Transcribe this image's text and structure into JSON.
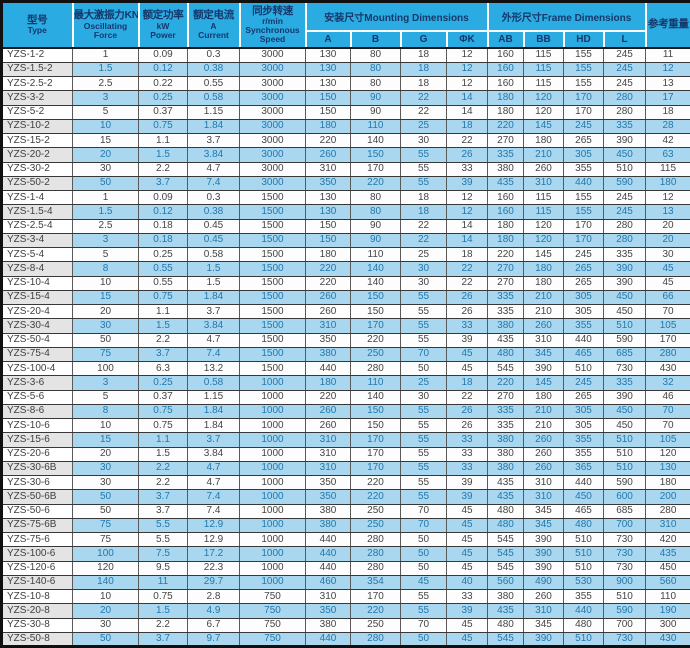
{
  "colors": {
    "header_bg": "#2aabe2",
    "header_text": "#16386b",
    "row_alt_bg": "#a9d7ef",
    "model_cell_alt_bg": "#e4e4e4",
    "grid_line": "#383838"
  },
  "table": {
    "header": {
      "type": {
        "zh": "型号",
        "en": "Type"
      },
      "force": {
        "zh": "最大激振力KN",
        "en": "Oscillating Force"
      },
      "power": {
        "zh": "额定功率",
        "unit": "kW",
        "en": "Power"
      },
      "current": {
        "zh": "额定电流",
        "unit": "A",
        "en": "Current"
      },
      "speed": {
        "zh": "同步转速",
        "unit": "r/min",
        "en": "Synchronous Speed"
      },
      "mounting": "安装尺寸Mounting Dimensions",
      "frame": "外形尺寸Frame Dimensions",
      "weight": "参考重量",
      "sub_cols": [
        "A",
        "B",
        "G",
        "ΦK",
        "AB",
        "BB",
        "HD",
        "L"
      ]
    },
    "rows": [
      [
        "YZS-1-2",
        "1",
        "0.09",
        "0.3",
        "3000",
        "130",
        "80",
        "18",
        "12",
        "160",
        "115",
        "155",
        "245",
        "11"
      ],
      [
        "YZS-1.5-2",
        "1.5",
        "0.12",
        "0.38",
        "3000",
        "130",
        "80",
        "18",
        "12",
        "160",
        "115",
        "155",
        "245",
        "12"
      ],
      [
        "YZS-2.5-2",
        "2.5",
        "0.22",
        "0.55",
        "3000",
        "130",
        "80",
        "18",
        "12",
        "160",
        "115",
        "155",
        "245",
        "13"
      ],
      [
        "YZS-3-2",
        "3",
        "0.25",
        "0.58",
        "3000",
        "150",
        "90",
        "22",
        "14",
        "180",
        "120",
        "170",
        "280",
        "17"
      ],
      [
        "YZS-5-2",
        "5",
        "0.37",
        "1.15",
        "3000",
        "150",
        "90",
        "22",
        "14",
        "180",
        "120",
        "170",
        "280",
        "18"
      ],
      [
        "YZS-10-2",
        "10",
        "0.75",
        "1.84",
        "3000",
        "180",
        "110",
        "25",
        "18",
        "220",
        "145",
        "245",
        "335",
        "28"
      ],
      [
        "YZS-15-2",
        "15",
        "1.1",
        "3.7",
        "3000",
        "220",
        "140",
        "30",
        "22",
        "270",
        "180",
        "265",
        "390",
        "42"
      ],
      [
        "YZS-20-2",
        "20",
        "1.5",
        "3.84",
        "3000",
        "260",
        "150",
        "55",
        "26",
        "335",
        "210",
        "305",
        "450",
        "63"
      ],
      [
        "YZS-30-2",
        "30",
        "2.2",
        "4.7",
        "3000",
        "310",
        "170",
        "55",
        "33",
        "380",
        "260",
        "355",
        "510",
        "115"
      ],
      [
        "YZS-50-2",
        "50",
        "3.7",
        "7.4",
        "3000",
        "350",
        "220",
        "55",
        "39",
        "435",
        "310",
        "440",
        "590",
        "180"
      ],
      [
        "YZS-1-4",
        "1",
        "0.09",
        "0.3",
        "1500",
        "130",
        "80",
        "18",
        "12",
        "160",
        "115",
        "155",
        "245",
        "12"
      ],
      [
        "YZS-1.5-4",
        "1.5",
        "0.12",
        "0.38",
        "1500",
        "130",
        "80",
        "18",
        "12",
        "160",
        "115",
        "155",
        "245",
        "13"
      ],
      [
        "YZS-2.5-4",
        "2.5",
        "0.18",
        "0.45",
        "1500",
        "150",
        "90",
        "22",
        "14",
        "180",
        "120",
        "170",
        "280",
        "20"
      ],
      [
        "YZS-3-4",
        "3",
        "0.18",
        "0.45",
        "1500",
        "150",
        "90",
        "22",
        "14",
        "180",
        "120",
        "170",
        "280",
        "20"
      ],
      [
        "YZS-5-4",
        "5",
        "0.25",
        "0.58",
        "1500",
        "180",
        "110",
        "25",
        "18",
        "220",
        "145",
        "245",
        "335",
        "30"
      ],
      [
        "YZS-8-4",
        "8",
        "0.55",
        "1.5",
        "1500",
        "220",
        "140",
        "30",
        "22",
        "270",
        "180",
        "265",
        "390",
        "45"
      ],
      [
        "YZS-10-4",
        "10",
        "0.55",
        "1.5",
        "1500",
        "220",
        "140",
        "30",
        "22",
        "270",
        "180",
        "265",
        "390",
        "45"
      ],
      [
        "YZS-15-4",
        "15",
        "0.75",
        "1.84",
        "1500",
        "260",
        "150",
        "55",
        "26",
        "335",
        "210",
        "305",
        "450",
        "66"
      ],
      [
        "YZS-20-4",
        "20",
        "1.1",
        "3.7",
        "1500",
        "260",
        "150",
        "55",
        "26",
        "335",
        "210",
        "305",
        "450",
        "70"
      ],
      [
        "YZS-30-4",
        "30",
        "1.5",
        "3.84",
        "1500",
        "310",
        "170",
        "55",
        "33",
        "380",
        "260",
        "355",
        "510",
        "105"
      ],
      [
        "YZS-50-4",
        "50",
        "2.2",
        "4.7",
        "1500",
        "350",
        "220",
        "55",
        "39",
        "435",
        "310",
        "440",
        "590",
        "170"
      ],
      [
        "YZS-75-4",
        "75",
        "3.7",
        "7.4",
        "1500",
        "380",
        "250",
        "70",
        "45",
        "480",
        "345",
        "465",
        "685",
        "280"
      ],
      [
        "YZS-100-4",
        "100",
        "6.3",
        "13.2",
        "1500",
        "440",
        "280",
        "50",
        "45",
        "545",
        "390",
        "510",
        "730",
        "430"
      ],
      [
        "YZS-3-6",
        "3",
        "0.25",
        "0.58",
        "1000",
        "180",
        "110",
        "25",
        "18",
        "220",
        "145",
        "245",
        "335",
        "32"
      ],
      [
        "YZS-5-6",
        "5",
        "0.37",
        "1.15",
        "1000",
        "220",
        "140",
        "30",
        "22",
        "270",
        "180",
        "265",
        "390",
        "46"
      ],
      [
        "YZS-8-6",
        "8",
        "0.75",
        "1.84",
        "1000",
        "260",
        "150",
        "55",
        "26",
        "335",
        "210",
        "305",
        "450",
        "70"
      ],
      [
        "YZS-10-6",
        "10",
        "0.75",
        "1.84",
        "1000",
        "260",
        "150",
        "55",
        "26",
        "335",
        "210",
        "305",
        "450",
        "70"
      ],
      [
        "YZS-15-6",
        "15",
        "1.1",
        "3.7",
        "1000",
        "310",
        "170",
        "55",
        "33",
        "380",
        "260",
        "355",
        "510",
        "105"
      ],
      [
        "YZS-20-6",
        "20",
        "1.5",
        "3.84",
        "1000",
        "310",
        "170",
        "55",
        "33",
        "380",
        "260",
        "355",
        "510",
        "120"
      ],
      [
        "YZS-30-6B",
        "30",
        "2.2",
        "4.7",
        "1000",
        "310",
        "170",
        "55",
        "33",
        "380",
        "260",
        "365",
        "510",
        "130"
      ],
      [
        "YZS-30-6",
        "30",
        "2.2",
        "4.7",
        "1000",
        "350",
        "220",
        "55",
        "39",
        "435",
        "310",
        "440",
        "590",
        "180"
      ],
      [
        "YZS-50-6B",
        "50",
        "3.7",
        "7.4",
        "1000",
        "350",
        "220",
        "55",
        "39",
        "435",
        "310",
        "450",
        "600",
        "200"
      ],
      [
        "YZS-50-6",
        "50",
        "3.7",
        "7.4",
        "1000",
        "380",
        "250",
        "70",
        "45",
        "480",
        "345",
        "465",
        "685",
        "280"
      ],
      [
        "YZS-75-6B",
        "75",
        "5.5",
        "12.9",
        "1000",
        "380",
        "250",
        "70",
        "45",
        "480",
        "345",
        "480",
        "700",
        "310"
      ],
      [
        "YZS-75-6",
        "75",
        "5.5",
        "12.9",
        "1000",
        "440",
        "280",
        "50",
        "45",
        "545",
        "390",
        "510",
        "730",
        "420"
      ],
      [
        "YZS-100-6",
        "100",
        "7.5",
        "17.2",
        "1000",
        "440",
        "280",
        "50",
        "45",
        "545",
        "390",
        "510",
        "730",
        "435"
      ],
      [
        "YZS-120-6",
        "120",
        "9.5",
        "22.3",
        "1000",
        "440",
        "280",
        "50",
        "45",
        "545",
        "390",
        "510",
        "730",
        "450"
      ],
      [
        "YZS-140-6",
        "140",
        "11",
        "29.7",
        "1000",
        "460",
        "354",
        "45",
        "40",
        "560",
        "490",
        "530",
        "900",
        "560"
      ],
      [
        "YZS-10-8",
        "10",
        "0.75",
        "2.8",
        "750",
        "310",
        "170",
        "55",
        "33",
        "380",
        "260",
        "355",
        "510",
        "110"
      ],
      [
        "YZS-20-8",
        "20",
        "1.5",
        "4.9",
        "750",
        "350",
        "220",
        "55",
        "39",
        "435",
        "310",
        "440",
        "590",
        "190"
      ],
      [
        "YZS-30-8",
        "30",
        "2.2",
        "6.7",
        "750",
        "380",
        "250",
        "70",
        "45",
        "480",
        "345",
        "480",
        "700",
        "300"
      ],
      [
        "YZS-50-8",
        "50",
        "3.7",
        "9.7",
        "750",
        "440",
        "280",
        "50",
        "45",
        "545",
        "390",
        "510",
        "730",
        "430"
      ]
    ]
  }
}
